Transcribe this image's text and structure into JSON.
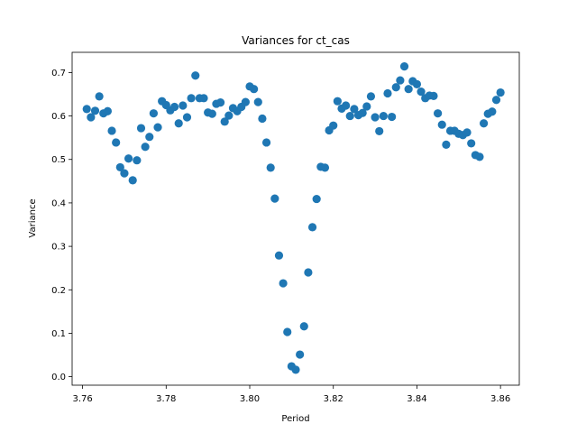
{
  "chart_data": {
    "type": "scatter",
    "title": "Variances for ct_cas",
    "xlabel": "Period",
    "ylabel": "Variance",
    "xlim": [
      3.7575,
      3.8645
    ],
    "ylim": [
      -0.0195,
      0.7465
    ],
    "xticks": [
      3.76,
      3.78,
      3.8,
      3.82,
      3.84,
      3.86
    ],
    "xtick_labels": [
      "3.76",
      "3.78",
      "3.80",
      "3.82",
      "3.84",
      "3.86"
    ],
    "yticks": [
      0.0,
      0.1,
      0.2,
      0.3,
      0.4,
      0.5,
      0.6,
      0.7
    ],
    "ytick_labels": [
      "0.0",
      "0.1",
      "0.2",
      "0.3",
      "0.4",
      "0.5",
      "0.6",
      "0.7"
    ],
    "grid": false,
    "marker_color": "#1f77b4",
    "points": [
      [
        3.761,
        0.616
      ],
      [
        3.762,
        0.597
      ],
      [
        3.763,
        0.612
      ],
      [
        3.764,
        0.645
      ],
      [
        3.765,
        0.606
      ],
      [
        3.766,
        0.611
      ],
      [
        3.767,
        0.566
      ],
      [
        3.768,
        0.539
      ],
      [
        3.769,
        0.482
      ],
      [
        3.77,
        0.468
      ],
      [
        3.771,
        0.502
      ],
      [
        3.772,
        0.452
      ],
      [
        3.773,
        0.498
      ],
      [
        3.774,
        0.572
      ],
      [
        3.775,
        0.529
      ],
      [
        3.776,
        0.552
      ],
      [
        3.777,
        0.606
      ],
      [
        3.778,
        0.574
      ],
      [
        3.779,
        0.634
      ],
      [
        3.78,
        0.625
      ],
      [
        3.781,
        0.613
      ],
      [
        3.782,
        0.621
      ],
      [
        3.783,
        0.583
      ],
      [
        3.784,
        0.624
      ],
      [
        3.785,
        0.597
      ],
      [
        3.786,
        0.641
      ],
      [
        3.787,
        0.693
      ],
      [
        3.788,
        0.641
      ],
      [
        3.789,
        0.641
      ],
      [
        3.79,
        0.608
      ],
      [
        3.791,
        0.605
      ],
      [
        3.792,
        0.628
      ],
      [
        3.793,
        0.631
      ],
      [
        3.794,
        0.587
      ],
      [
        3.795,
        0.601
      ],
      [
        3.796,
        0.618
      ],
      [
        3.797,
        0.611
      ],
      [
        3.798,
        0.621
      ],
      [
        3.799,
        0.632
      ],
      [
        3.8,
        0.668
      ],
      [
        3.801,
        0.662
      ],
      [
        3.802,
        0.632
      ],
      [
        3.803,
        0.594
      ],
      [
        3.804,
        0.539
      ],
      [
        3.805,
        0.481
      ],
      [
        3.806,
        0.41
      ],
      [
        3.807,
        0.279
      ],
      [
        3.808,
        0.215
      ],
      [
        3.809,
        0.103
      ],
      [
        3.81,
        0.024
      ],
      [
        3.811,
        0.016
      ],
      [
        3.812,
        0.051
      ],
      [
        3.813,
        0.116
      ],
      [
        3.814,
        0.24
      ],
      [
        3.815,
        0.344
      ],
      [
        3.816,
        0.409
      ],
      [
        3.817,
        0.483
      ],
      [
        3.818,
        0.481
      ],
      [
        3.819,
        0.567
      ],
      [
        3.82,
        0.578
      ],
      [
        3.821,
        0.634
      ],
      [
        3.822,
        0.617
      ],
      [
        3.823,
        0.624
      ],
      [
        3.824,
        0.6
      ],
      [
        3.825,
        0.616
      ],
      [
        3.826,
        0.602
      ],
      [
        3.827,
        0.607
      ],
      [
        3.828,
        0.622
      ],
      [
        3.829,
        0.645
      ],
      [
        3.83,
        0.597
      ],
      [
        3.831,
        0.565
      ],
      [
        3.832,
        0.6
      ],
      [
        3.833,
        0.652
      ],
      [
        3.834,
        0.598
      ],
      [
        3.835,
        0.666
      ],
      [
        3.836,
        0.682
      ],
      [
        3.837,
        0.714
      ],
      [
        3.838,
        0.662
      ],
      [
        3.839,
        0.68
      ],
      [
        3.84,
        0.673
      ],
      [
        3.841,
        0.656
      ],
      [
        3.842,
        0.641
      ],
      [
        3.843,
        0.647
      ],
      [
        3.844,
        0.646
      ],
      [
        3.845,
        0.606
      ],
      [
        3.846,
        0.58
      ],
      [
        3.847,
        0.534
      ],
      [
        3.848,
        0.566
      ],
      [
        3.849,
        0.566
      ],
      [
        3.85,
        0.559
      ],
      [
        3.851,
        0.556
      ],
      [
        3.852,
        0.562
      ],
      [
        3.853,
        0.537
      ],
      [
        3.854,
        0.51
      ],
      [
        3.855,
        0.506
      ],
      [
        3.856,
        0.583
      ],
      [
        3.857,
        0.605
      ],
      [
        3.858,
        0.61
      ],
      [
        3.859,
        0.637
      ],
      [
        3.86,
        0.654
      ]
    ]
  }
}
